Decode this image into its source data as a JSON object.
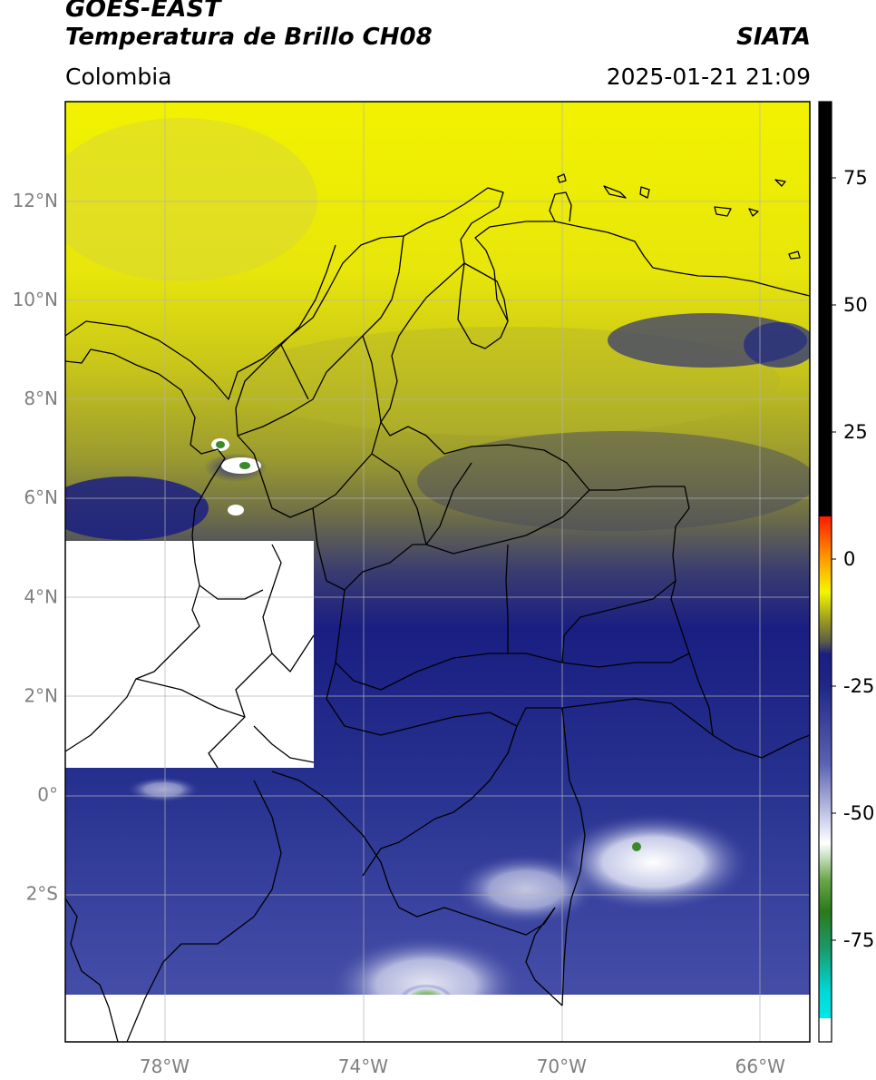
{
  "header": {
    "satellite": "GOES-EAST",
    "product": "Temperatura de Brillo CH08",
    "brand": "SIATA",
    "region": "Colombia",
    "datetime": "2025-01-21 21:09"
  },
  "map": {
    "lon_range": [
      -80,
      -65
    ],
    "lat_range": [
      -5,
      14
    ],
    "lon_ticks": [
      {
        "value": -78,
        "label": "78°W"
      },
      {
        "value": -74,
        "label": "74°W"
      },
      {
        "value": -70,
        "label": "70°W"
      },
      {
        "value": -66,
        "label": "66°W"
      }
    ],
    "lat_ticks": [
      {
        "value": 12,
        "label": "12°N"
      },
      {
        "value": 10,
        "label": "10°N"
      },
      {
        "value": 8,
        "label": "8°N"
      },
      {
        "value": 6,
        "label": "6°N"
      },
      {
        "value": 4,
        "label": "4°N"
      },
      {
        "value": 2,
        "label": "2°N"
      },
      {
        "value": 0,
        "label": "0°"
      },
      {
        "value": -2,
        "label": "2°S"
      }
    ]
  },
  "colorbar": {
    "range": [
      -95,
      90
    ],
    "ticks": [
      {
        "value": 75,
        "label": "75"
      },
      {
        "value": 50,
        "label": "50"
      },
      {
        "value": 25,
        "label": "25"
      },
      {
        "value": 0,
        "label": "0"
      },
      {
        "value": -25,
        "label": "-25"
      },
      {
        "value": -50,
        "label": "-50"
      },
      {
        "value": -75,
        "label": "-75"
      }
    ]
  },
  "colors": {
    "yellow": "#f2f200",
    "olive": "#8f8f2a",
    "gray": "#5e5e50",
    "navy": "#1a1e82",
    "blue": "#3a44a0",
    "lavender": "#aab0dc",
    "white": "#ffffff",
    "green": "#3a8a2a",
    "black": "#000000"
  }
}
